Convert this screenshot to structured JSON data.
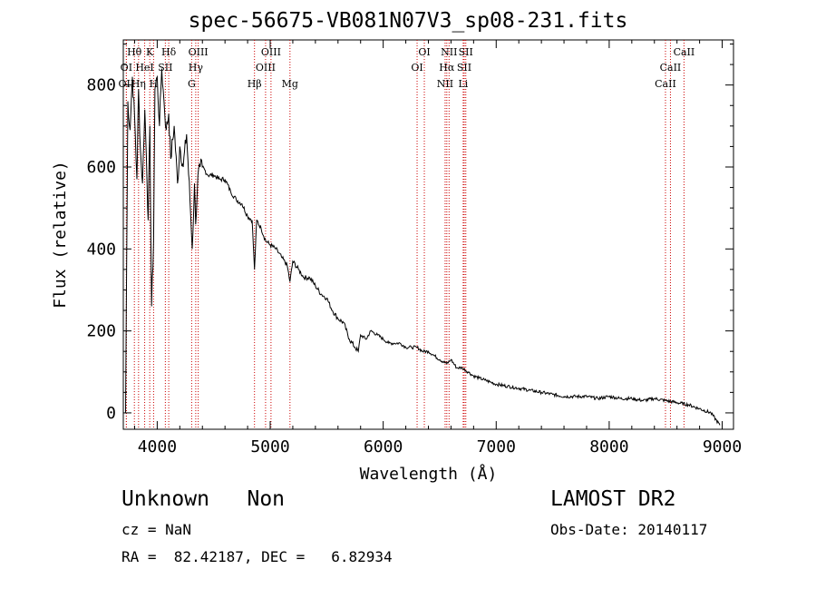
{
  "chart_data": {
    "type": "line",
    "title": "spec-56675-VB081N07V3_sp08-231.fits",
    "xlabel": "Wavelength (Å)",
    "ylabel": "Flux (relative)",
    "xlim": [
      3700,
      9100
    ],
    "ylim": [
      -40,
      910
    ],
    "x_ticks": [
      4000,
      5000,
      6000,
      7000,
      8000,
      9000
    ],
    "y_ticks": [
      0,
      200,
      400,
      600,
      800
    ],
    "grid": false,
    "line_color": "#000000",
    "marker_color": "#cc0000",
    "series": [
      {
        "x": [
          3720,
          3740,
          3760,
          3780,
          3800,
          3820,
          3835,
          3850,
          3870,
          3890,
          3905,
          3920,
          3935,
          3950,
          3968,
          3980,
          4000,
          4020,
          4040,
          4060,
          4080,
          4102,
          4120,
          4150,
          4180,
          4200,
          4230,
          4260,
          4290,
          4310,
          4330,
          4340,
          4360,
          4380,
          4400,
          4450,
          4500,
          4550,
          4600,
          4650,
          4700,
          4750,
          4800,
          4840,
          4861,
          4880,
          4920,
          4960,
          5000,
          5050,
          5100,
          5150,
          5175,
          5200,
          5250,
          5300,
          5350,
          5400,
          5450,
          5500,
          5550,
          5600,
          5650,
          5700,
          5750,
          5780,
          5800,
          5850,
          5890,
          5950,
          6000,
          6050,
          6100,
          6150,
          6200,
          6250,
          6300,
          6350,
          6400,
          6450,
          6500,
          6563,
          6600,
          6650,
          6700,
          6750,
          6800,
          6850,
          6900,
          6950,
          7000,
          7100,
          7200,
          7300,
          7400,
          7500,
          7600,
          7700,
          7800,
          7900,
          8000,
          8100,
          8200,
          8300,
          8400,
          8500,
          8600,
          8700,
          8800,
          8900,
          8980
        ],
        "y": [
          0,
          760,
          690,
          820,
          720,
          570,
          790,
          650,
          560,
          740,
          620,
          470,
          700,
          260,
          420,
          790,
          820,
          700,
          840,
          760,
          690,
          730,
          620,
          700,
          560,
          650,
          600,
          680,
          520,
          400,
          560,
          460,
          580,
          600,
          600,
          580,
          580,
          570,
          570,
          540,
          520,
          510,
          480,
          470,
          350,
          470,
          450,
          420,
          410,
          400,
          380,
          360,
          320,
          370,
          350,
          330,
          330,
          310,
          290,
          280,
          250,
          230,
          220,
          180,
          160,
          150,
          190,
          180,
          200,
          190,
          180,
          170,
          170,
          170,
          160,
          160,
          160,
          150,
          150,
          140,
          130,
          120,
          130,
          110,
          110,
          100,
          90,
          85,
          80,
          75,
          70,
          65,
          60,
          55,
          50,
          45,
          40,
          40,
          40,
          35,
          40,
          35,
          35,
          30,
          35,
          30,
          25,
          20,
          10,
          0,
          -30
        ]
      }
    ],
    "annotations": [
      {
        "label": "OII",
        "wavelength": 3727,
        "row": 3
      },
      {
        "label": "OI",
        "wavelength": 3727,
        "row": 2
      },
      {
        "label": "Hθ",
        "wavelength": 3798,
        "row": 1
      },
      {
        "label": "Hη",
        "wavelength": 3835,
        "row": 3
      },
      {
        "label": "HeI",
        "wavelength": 3889,
        "row": 2
      },
      {
        "label": "K",
        "wavelength": 3934,
        "row": 1
      },
      {
        "label": "H",
        "wavelength": 3968,
        "row": 3
      },
      {
        "label": "Hδ",
        "wavelength": 4102,
        "row": 1
      },
      {
        "label": "SII",
        "wavelength": 4072,
        "row": 2
      },
      {
        "label": "OIII",
        "wavelength": 4363,
        "row": 1
      },
      {
        "label": "Hγ",
        "wavelength": 4341,
        "row": 2
      },
      {
        "label": "G",
        "wavelength": 4305,
        "row": 3
      },
      {
        "label": "Hβ",
        "wavelength": 4861,
        "row": 3
      },
      {
        "label": "OIII",
        "wavelength": 4959,
        "row": 2
      },
      {
        "label": "OIII",
        "wavelength": 5007,
        "row": 1
      },
      {
        "label": "Mg",
        "wavelength": 5175,
        "row": 3
      },
      {
        "label": "OI",
        "wavelength": 6300,
        "row": 2
      },
      {
        "label": "OI",
        "wavelength": 6364,
        "row": 1
      },
      {
        "label": "NII",
        "wavelength": 6548,
        "row": 3
      },
      {
        "label": "Hα",
        "wavelength": 6563,
        "row": 2
      },
      {
        "label": "NII",
        "wavelength": 6583,
        "row": 1
      },
      {
        "label": "Li",
        "wavelength": 6708,
        "row": 3
      },
      {
        "label": "SII",
        "wavelength": 6717,
        "row": 2
      },
      {
        "label": "SII",
        "wavelength": 6731,
        "row": 1
      },
      {
        "label": "CaII",
        "wavelength": 8498,
        "row": 3
      },
      {
        "label": "CaII",
        "wavelength": 8542,
        "row": 2
      },
      {
        "label": "CaII",
        "wavelength": 8662,
        "row": 1
      }
    ]
  },
  "footer": {
    "class": "Unknown   Non",
    "survey": "LAMOST DR2",
    "cz": "cz = NaN",
    "obs_date": "Obs-Date: 20140117",
    "coords": "RA =  82.42187, DEC =   6.82934"
  }
}
